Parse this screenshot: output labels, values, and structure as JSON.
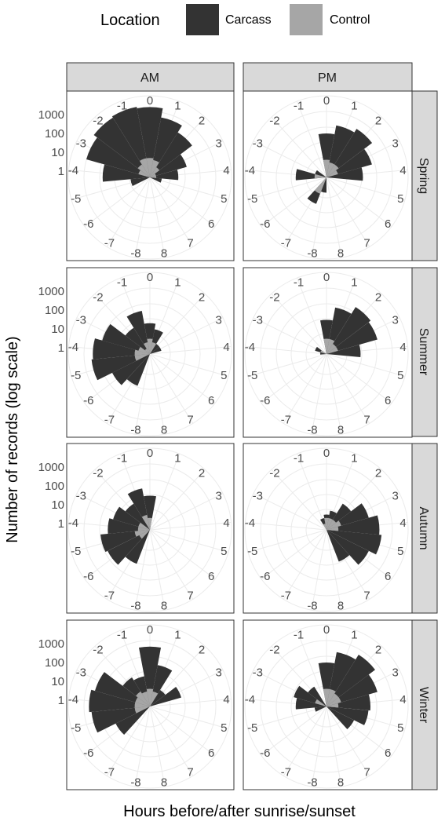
{
  "chart_data": {
    "type": "polar-bar",
    "legend": {
      "title": "Location",
      "items": [
        {
          "label": "Carcass",
          "color": "#333333"
        },
        {
          "label": "Control",
          "color": "#a6a6a6"
        }
      ],
      "position": "top"
    },
    "xlabel": "Hours before/after sunrise/sunset",
    "ylabel": "Number of records (log scale)",
    "radial_scale": "log10",
    "radial_ticks": [
      "1",
      "10",
      "100",
      "1000"
    ],
    "angular_ticks": [
      "0",
      "1",
      "2",
      "3",
      "4",
      "5",
      "6",
      "7",
      "8",
      "-8",
      "-7",
      "-6",
      "-5",
      "-4",
      "-3",
      "-2",
      "-1"
    ],
    "columns": [
      "AM",
      "PM"
    ],
    "rows": [
      "Spring",
      "Summer",
      "Autumn",
      "Winter"
    ],
    "panels": [
      {
        "season": "Spring",
        "period": "AM",
        "carcass": {
          "-4": 150,
          "-3": 1500,
          "-2": 2500,
          "-1": 3000,
          "0": 2500,
          "1": 800,
          "2": 300,
          "3": 50,
          "4": 15,
          "5": 2,
          "-5": 5
        },
        "control": {
          "-3": 2,
          "-2": 3,
          "-1": 5,
          "0": 5,
          "1": 4,
          "2": 2,
          "3": 1,
          "4": 1
        }
      },
      {
        "season": "Spring",
        "period": "PM",
        "carcass": {
          "0": 100,
          "1": 300,
          "2": 500,
          "3": 150,
          "4": 40,
          "-3": 2,
          "-4": 20,
          "-7": 15,
          "-8": 3
        },
        "control": {
          "0": 4,
          "1": 3,
          "2": 3,
          "3": 2,
          "-4": 2,
          "-7": 4
        }
      },
      {
        "season": "Summer",
        "period": "AM",
        "carcass": {
          "-1": 100,
          "0": 20,
          "1": 10,
          "2": 2,
          "3": 2,
          "-2": 20,
          "-3": 200,
          "-4": 500,
          "-5": 600,
          "-6": 80,
          "-7": 30
        },
        "control": {
          "0": 3,
          "1": 2,
          "-1": 2,
          "-2": 1,
          "-3": 2,
          "-4": 3,
          "-5": 3
        }
      },
      {
        "season": "Summer",
        "period": "PM",
        "carcass": {
          "0": 30,
          "1": 150,
          "2": 400,
          "3": 300,
          "4": 30,
          "-3": 2,
          "-4": 1
        },
        "control": {
          "0": 3,
          "1": 3,
          "2": 2,
          "3": 2,
          "-3": 1
        }
      },
      {
        "season": "Autumn",
        "period": "AM",
        "carcass": {
          "-1": 80,
          "0": 30,
          "-2": 20,
          "-3": 50,
          "-4": 80,
          "-5": 200,
          "-6": 150,
          "-7": 40
        },
        "control": {
          "-1": 3,
          "0": 2,
          "-3": 2,
          "-4": 2,
          "-5": 3,
          "-6": 2
        }
      },
      {
        "season": "Autumn",
        "period": "PM",
        "carcass": {
          "-1": 2,
          "0": 3,
          "1": 5,
          "2": 20,
          "3": 100,
          "4": 300,
          "5": 400,
          "6": 150,
          "7": 30
        },
        "control": {
          "-1": 1,
          "0": 2,
          "1": 2,
          "2": 2,
          "3": 3,
          "4": 2
        }
      },
      {
        "season": "Winter",
        "period": "AM",
        "carcass": {
          "0": 700,
          "1": 80,
          "2": 5,
          "3": 25,
          "-1": 20,
          "-2": 30,
          "-3": 500,
          "-4": 800,
          "-5": 600,
          "-6": 50
        },
        "control": {
          "0": 4,
          "1": 3,
          "-1": 3,
          "-2": 4,
          "-3": 3,
          "-4": 3,
          "-5": 3
        }
      },
      {
        "season": "Winter",
        "period": "PM",
        "carcass": {
          "0": 100,
          "1": 400,
          "2": 800,
          "3": 300,
          "4": 100,
          "5": 80,
          "6": 20,
          "-2": 8,
          "-3": 30,
          "-4": 20,
          "-5": 2
        },
        "control": {
          "0": 4,
          "1": 4,
          "2": 3,
          "3": 3,
          "4": 2,
          "-3": 2
        }
      }
    ]
  }
}
